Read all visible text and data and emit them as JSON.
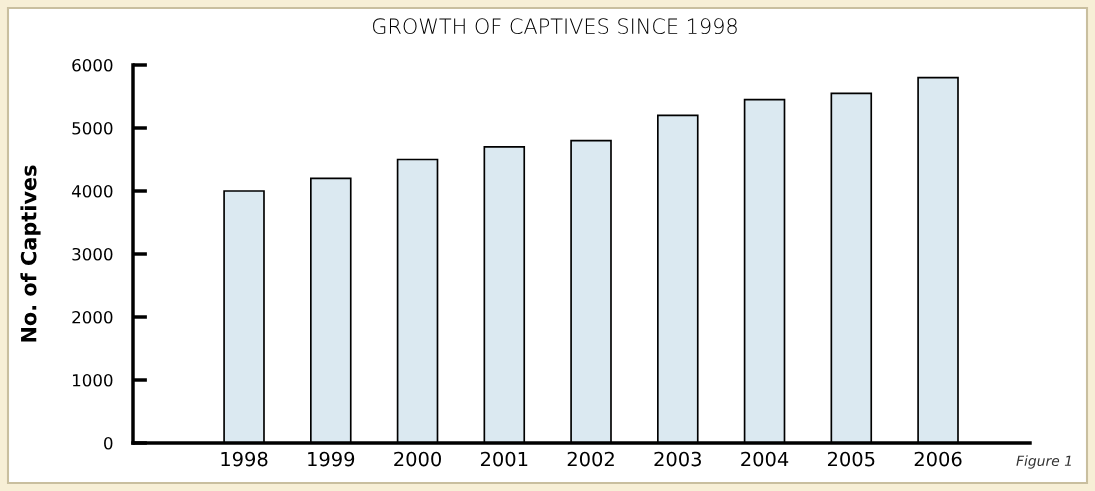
{
  "chart_data": {
    "type": "bar",
    "title": "GROWTH OF CAPTIVES SINCE 1998",
    "ylabel": "No. of Captives",
    "categories": [
      "1998",
      "1999",
      "2000",
      "2001",
      "2002",
      "2003",
      "2004",
      "2005",
      "2006"
    ],
    "values": [
      4000,
      4200,
      4500,
      4700,
      4800,
      5200,
      5450,
      5550,
      5800
    ],
    "color": "#dbe9f1",
    "ylim": [
      0,
      6000
    ],
    "yticks": [
      0,
      1000,
      2000,
      3000,
      4000,
      5000,
      6000
    ],
    "grid": false,
    "annotations": [
      "Figure 1"
    ]
  }
}
